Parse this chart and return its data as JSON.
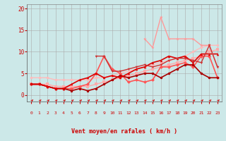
{
  "xlabel": "Vent moyen/en rafales ( km/h )",
  "background_color": "#cce8e8",
  "grid_color": "#aaaaaa",
  "text_color": "#cc0000",
  "xlim": [
    -0.5,
    23.5
  ],
  "ylim": [
    -1.5,
    21
  ],
  "yticks": [
    0,
    5,
    10,
    15,
    20
  ],
  "xticks": [
    0,
    1,
    2,
    3,
    4,
    5,
    6,
    7,
    8,
    9,
    10,
    11,
    12,
    13,
    14,
    15,
    16,
    17,
    18,
    19,
    20,
    21,
    22,
    23
  ],
  "series": [
    {
      "x": [
        0,
        1,
        2,
        3,
        4,
        5,
        6,
        7,
        8,
        9,
        10,
        11,
        12,
        13,
        14,
        15,
        16,
        17,
        18,
        19,
        20,
        21,
        22,
        23
      ],
      "y": [
        4,
        4,
        4,
        3.5,
        3.5,
        3.5,
        3.5,
        3.5,
        4,
        4,
        4.5,
        5,
        5.5,
        6,
        6.5,
        7,
        7.5,
        8,
        8.5,
        9,
        10,
        11,
        11.5,
        11.5
      ],
      "color": "#ffbbbb",
      "linewidth": 1.0,
      "markersize": 2.5,
      "marker": "o"
    },
    {
      "x": [
        0,
        1,
        2,
        3,
        4,
        5,
        6,
        7,
        8,
        9,
        10,
        11,
        12,
        13,
        14,
        15,
        16,
        17,
        18,
        19,
        20,
        21,
        22,
        23
      ],
      "y": [
        2.5,
        2.5,
        2.5,
        2,
        2,
        2,
        2,
        2,
        2.5,
        3,
        3.5,
        4,
        4.5,
        5,
        5.5,
        6,
        6.5,
        7,
        7.5,
        8,
        8.5,
        9,
        10,
        10.5
      ],
      "color": "#ffaaaa",
      "linewidth": 1.0,
      "markersize": 2.5,
      "marker": "s"
    },
    {
      "x": [
        0,
        1,
        2,
        3,
        4,
        5,
        6,
        7,
        8,
        9,
        10,
        11,
        12,
        13,
        14,
        15,
        16,
        17,
        18,
        19,
        20,
        21,
        22,
        23
      ],
      "y": [
        2.5,
        2.5,
        2,
        1.5,
        1.5,
        1.5,
        2,
        2.5,
        5,
        9,
        6,
        5,
        3,
        3.5,
        3,
        3.5,
        6.5,
        6.5,
        7,
        7.5,
        6.5,
        9,
        9,
        4
      ],
      "color": "#ff5555",
      "linewidth": 1.2,
      "markersize": 2.5,
      "marker": "D"
    },
    {
      "x": [
        0,
        1,
        2,
        3,
        4,
        5,
        6,
        7,
        8,
        9,
        10,
        11,
        12,
        13,
        14,
        15,
        16,
        17,
        18,
        19,
        20,
        21,
        22,
        23
      ],
      "y": [
        2.5,
        2.5,
        2,
        1.5,
        1.5,
        1.0,
        1.5,
        1.0,
        1.5,
        2.5,
        3.5,
        4.5,
        4,
        4.5,
        5,
        5,
        4,
        5,
        6,
        7,
        7,
        5,
        4,
        4
      ],
      "color": "#aa0000",
      "linewidth": 1.2,
      "markersize": 2.5,
      "marker": "o"
    },
    {
      "x": [
        0,
        1,
        2,
        3,
        4,
        5,
        6,
        7,
        8,
        9,
        10,
        11,
        12,
        13,
        14,
        15,
        16,
        17,
        18,
        19,
        20,
        21,
        22,
        23
      ],
      "y": [
        2.5,
        2.5,
        2,
        1.5,
        1.5,
        2.5,
        3.5,
        4,
        5,
        4,
        4.5,
        4,
        5,
        6,
        6.5,
        7.5,
        8,
        9,
        8.5,
        9,
        7.5,
        9.5,
        9.5,
        9.5
      ],
      "color": "#dd0000",
      "linewidth": 1.2,
      "markersize": 2.5,
      "marker": "^"
    },
    {
      "x": [
        14,
        15,
        16,
        17,
        18,
        19,
        20,
        21,
        22,
        23
      ],
      "y": [
        13,
        11,
        18,
        13,
        13,
        13,
        13,
        11.5,
        11.5,
        6.5
      ],
      "color": "#ff9999",
      "linewidth": 1.0,
      "markersize": 3.5,
      "marker": "*"
    },
    {
      "x": [
        8,
        9,
        10,
        11,
        12,
        13,
        14,
        15,
        16,
        17,
        18,
        19,
        20,
        21,
        22,
        23
      ],
      "y": [
        9,
        9,
        5.5,
        5.5,
        6,
        6.5,
        7,
        6.5,
        7,
        8,
        8.5,
        8.5,
        8,
        7.5,
        11.5,
        6.5
      ],
      "color": "#cc3333",
      "linewidth": 1.0,
      "markersize": 2.5,
      "marker": "v"
    }
  ]
}
